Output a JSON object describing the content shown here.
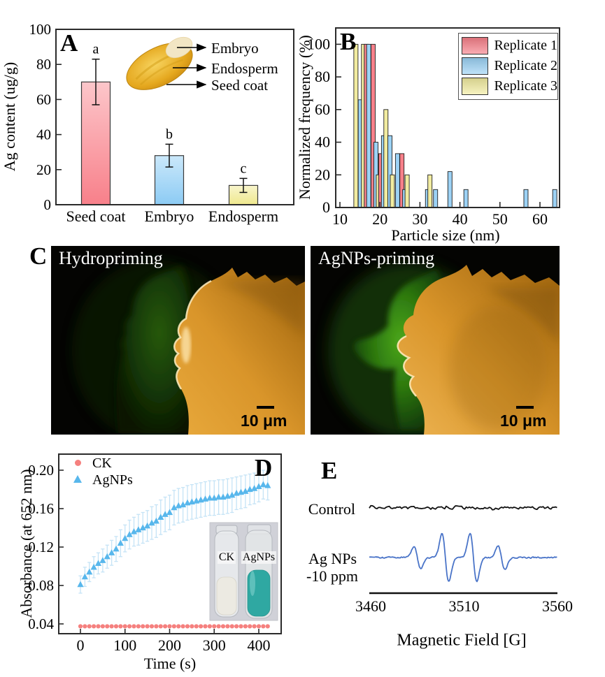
{
  "panel_letters": {
    "A": "A",
    "B": "B",
    "C": "C",
    "D": "D",
    "E": "E"
  },
  "chart_data": [
    {
      "panel": "A",
      "type": "bar",
      "ylabel": "Ag content (ug/g)",
      "ylim": [
        0,
        100
      ],
      "yticks": [
        0,
        20,
        40,
        60,
        80,
        100
      ],
      "categories": [
        "Seed coat",
        "Embryo",
        "Endosperm"
      ],
      "values": [
        70,
        28,
        11
      ],
      "errors": [
        13,
        6.5,
        4
      ],
      "sig_letters": [
        "a",
        "b",
        "c"
      ],
      "bar_colors": [
        "#f8808a",
        "#8ccbf4",
        "#efe88d"
      ],
      "inset_labels": [
        "Embryo",
        "Endosperm",
        "Seed coat"
      ]
    },
    {
      "panel": "B",
      "type": "bar",
      "xlabel": "Particle size (nm)",
      "ylabel": "Normalized frequency (%)",
      "xlim": [
        9,
        70
      ],
      "ylim": [
        0,
        110
      ],
      "xticks": [
        10,
        20,
        30,
        40,
        50,
        60
      ],
      "yticks": [
        0,
        20,
        40,
        60,
        80,
        100
      ],
      "legend": [
        {
          "label": "Replicate 1",
          "color": "#f8808a"
        },
        {
          "label": "Replicate 2",
          "color": "#9cd2f5"
        },
        {
          "label": "Replicate 3",
          "color": "#f2eca0"
        }
      ],
      "bars_format": "[particle_size_nm, normalized_frequency_pct, replicate]",
      "bars": [
        [
          14,
          100,
          3
        ],
        [
          15.1,
          66,
          2
        ],
        [
          15.9,
          100,
          3
        ],
        [
          16.6,
          100,
          1
        ],
        [
          17.2,
          100,
          2
        ],
        [
          18.3,
          100,
          1
        ],
        [
          19,
          40,
          2
        ],
        [
          19.6,
          20,
          3
        ],
        [
          20.2,
          33,
          1
        ],
        [
          20.9,
          44,
          2
        ],
        [
          21.5,
          60,
          3
        ],
        [
          22.5,
          44,
          2
        ],
        [
          23.1,
          20,
          3
        ],
        [
          24.4,
          33,
          2
        ],
        [
          25.5,
          33,
          1
        ],
        [
          26.2,
          11,
          2
        ],
        [
          26.8,
          20,
          3
        ],
        [
          31.9,
          11,
          2
        ],
        [
          32.5,
          20,
          3
        ],
        [
          33.9,
          11,
          2
        ],
        [
          37.5,
          22,
          2
        ],
        [
          41.5,
          11,
          2
        ],
        [
          56.5,
          11,
          2
        ],
        [
          63.7,
          11,
          2
        ]
      ]
    },
    {
      "panel": "D",
      "type": "scatter",
      "xlabel": "Time (s)",
      "ylabel": "Absorbance (at 652 nm)",
      "xlim": [
        -45,
        450
      ],
      "ylim": [
        0.03,
        0.215
      ],
      "xticks": [
        0,
        100,
        200,
        300,
        400
      ],
      "yticks": [
        "0.04",
        "0.08",
        "0.12",
        "0.16",
        "0.20"
      ],
      "series": [
        {
          "name": "CK",
          "marker": "circle",
          "color": "#f5807e",
          "t_start": 0,
          "t_step": 10,
          "t_end": 420,
          "value": 0.0375
        },
        {
          "name": "AgNPs",
          "marker": "triangle",
          "color": "#58b7ec",
          "error_bar_color": "#c5e3f6",
          "t_start": 0,
          "t_step": 10,
          "values": [
            0.081,
            0.089,
            0.094,
            0.099,
            0.103,
            0.106,
            0.11,
            0.114,
            0.118,
            0.124,
            0.129,
            0.133,
            0.136,
            0.138,
            0.14,
            0.142,
            0.145,
            0.147,
            0.151,
            0.154,
            0.156,
            0.161,
            0.163,
            0.164,
            0.166,
            0.167,
            0.168,
            0.169,
            0.17,
            0.171,
            0.171,
            0.172,
            0.172,
            0.173,
            0.174,
            0.176,
            0.177,
            0.178,
            0.18,
            0.181,
            0.183,
            0.185,
            0.184
          ],
          "yerr": [
            0.009,
            0.01,
            0.01,
            0.011,
            0.011,
            0.012,
            0.012,
            0.013,
            0.013,
            0.014,
            0.014,
            0.015,
            0.015,
            0.016,
            0.016,
            0.016,
            0.017,
            0.017,
            0.018,
            0.018,
            0.018,
            0.018,
            0.018,
            0.018,
            0.018,
            0.018,
            0.018,
            0.018,
            0.018,
            0.018,
            0.018,
            0.018,
            0.018,
            0.018,
            0.018,
            0.017,
            0.017,
            0.017,
            0.016,
            0.016,
            0.016,
            0.015,
            0.015
          ]
        }
      ],
      "inset_tube_labels": [
        "CK",
        "AgNPs"
      ]
    },
    {
      "panel": "E",
      "type": "line",
      "xlabel": "Magnetic Field [G]",
      "xlim": [
        3459,
        3561
      ],
      "xticks": [
        3460,
        3510,
        3560
      ],
      "series": [
        {
          "name": "Control",
          "color": "#111111"
        },
        {
          "name": "Ag NPs -10 ppm",
          "label_lines": [
            "Ag NPs",
            "-10 ppm"
          ],
          "color": "#4a74c8",
          "peak_width_G": 1.8,
          "peaks": [
            {
              "center_G": 3485,
              "rel_amp": 0.45
            },
            {
              "center_G": 3500,
              "rel_amp": 1
            },
            {
              "center_G": 3515,
              "rel_amp": 1
            },
            {
              "center_G": 3530,
              "rel_amp": 0.5
            }
          ]
        }
      ]
    }
  ],
  "panel_c": {
    "images": [
      {
        "label": "Hydropriming",
        "scalebar": "10 μm"
      },
      {
        "label": "AgNPs-priming",
        "scalebar": "10 μm"
      }
    ]
  }
}
